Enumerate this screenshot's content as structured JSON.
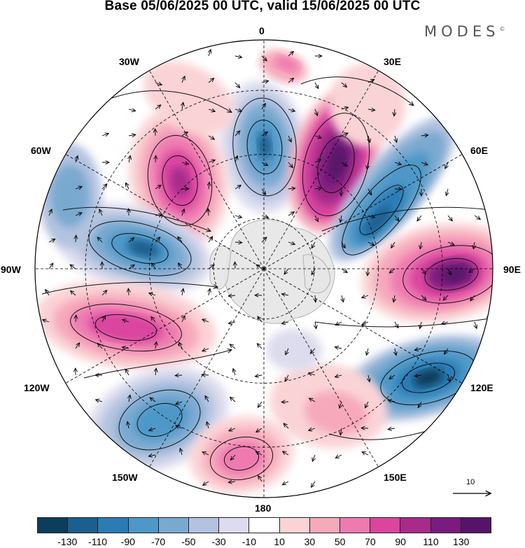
{
  "title": "Base 05/06/2025 00 UTC, valid 15/06/2025 00 UTC",
  "brand": "MODES",
  "brand_mark": "©",
  "longitude_labels": {
    "l0": "0",
    "l30e": "30E",
    "l60e": "60E",
    "l90e": "90E",
    "l120e": "120E",
    "l150e": "150E",
    "l180": "180",
    "l150w": "150W",
    "l120w": "120W",
    "l90w": "90W",
    "l60w": "60W",
    "l30w": "30W"
  },
  "reference_vector": "10",
  "colorbar": {
    "colors": [
      "#0d3d5c",
      "#1a5f8e",
      "#2b7bb4",
      "#4d98c8",
      "#7aa9d0",
      "#b3c3df",
      "#dcdcee",
      "#ffffff",
      "#fad3d6",
      "#f6a9bb",
      "#ee7ab0",
      "#d9459f",
      "#a82b8c",
      "#791c7d",
      "#561468"
    ],
    "ticks": [
      "-130",
      "-110",
      "-90",
      "-70",
      "-50",
      "-30",
      "-10",
      "10",
      "30",
      "50",
      "70",
      "90",
      "110",
      "130"
    ]
  }
}
